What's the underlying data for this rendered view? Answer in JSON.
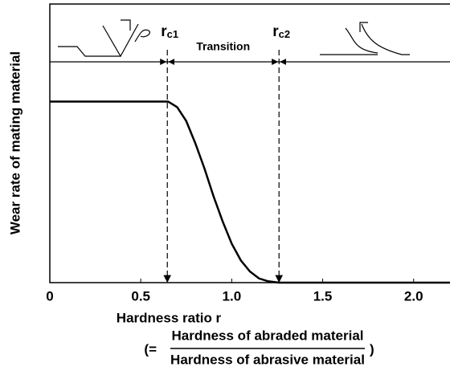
{
  "chart_data": {
    "type": "line",
    "y_label": "Wear rate of mating material",
    "x_label": "Hardness ratio r",
    "x_formula": {
      "open": "(=",
      "numerator": "Hardness of abraded material",
      "denominator": "Hardness of abrasive material",
      "close": ")"
    },
    "region_label": "Transition",
    "markers": [
      {
        "main": "r",
        "sub": "c1",
        "x": 0.646
      },
      {
        "main": "r",
        "sub": "c2",
        "x": 1.26
      }
    ],
    "x": [
      0,
      0.65,
      0.7,
      0.75,
      0.8,
      0.85,
      0.9,
      0.95,
      1.0,
      1.05,
      1.1,
      1.15,
      1.2,
      1.26,
      1.5,
      2.2
    ],
    "values": [
      0.65,
      0.65,
      0.63,
      0.58,
      0.5,
      0.41,
      0.31,
      0.22,
      0.14,
      0.08,
      0.04,
      0.015,
      0.005,
      0,
      0,
      0
    ],
    "color": "#000000",
    "xlim": [
      0,
      2.2
    ],
    "ylim": [
      0,
      1
    ],
    "xticks": [
      0,
      0.5,
      {
        "value": 1,
        "label": "1.0"
      },
      1.5,
      {
        "value": 2,
        "label": "2.0"
      }
    ]
  }
}
